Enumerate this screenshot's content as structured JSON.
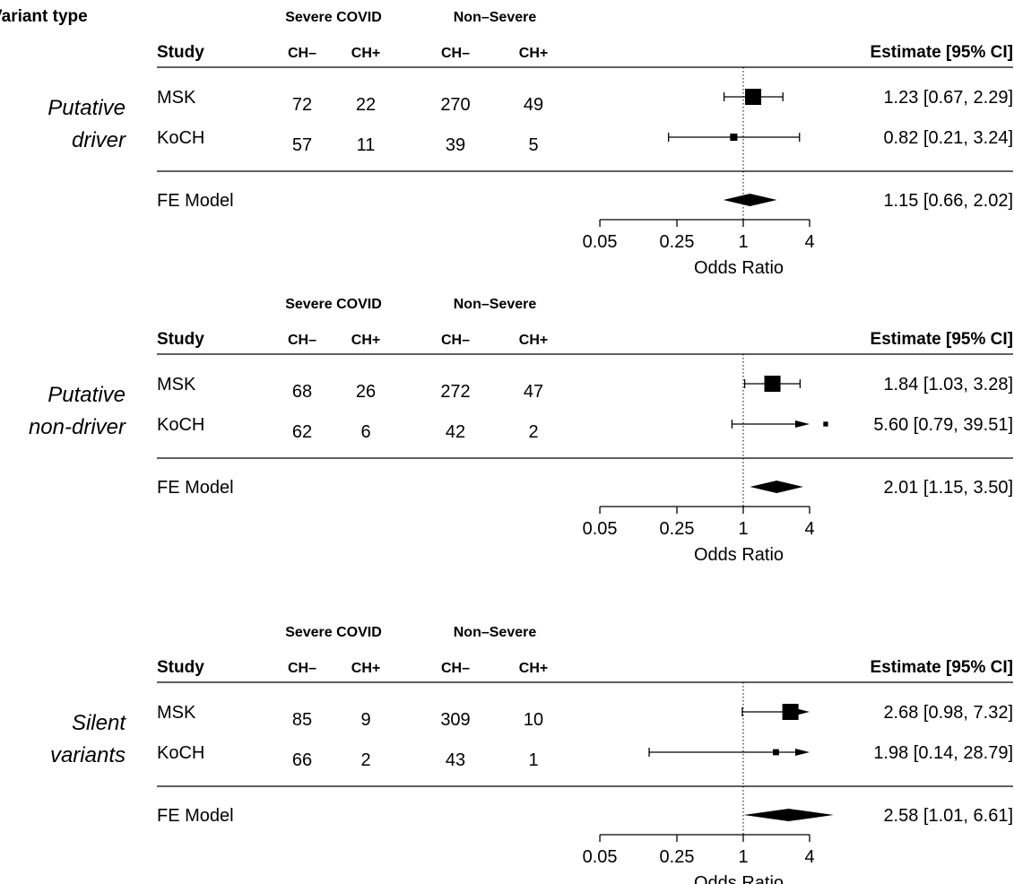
{
  "figure": {
    "title": "Variant type"
  },
  "chart_data": [
    {
      "type": "forest",
      "panel": "Putative driver",
      "group_label_lines": [
        "Putative",
        "driver"
      ],
      "group_headers": [
        "Severe COVID",
        "Non–Severe"
      ],
      "column_headers": {
        "study": "Study",
        "sev_neg": "CH–",
        "sev_pos": "CH+",
        "non_neg": "CH–",
        "non_pos": "CH+",
        "estimate": "Estimate [95% CI]"
      },
      "studies": [
        {
          "name": "MSK",
          "sev_neg": "72",
          "sev_pos": "22",
          "non_neg": "270",
          "non_pos": "49",
          "or": 1.23,
          "lo": 0.67,
          "hi": 2.29,
          "est_text": "1.23 [0.67, 2.29]"
        },
        {
          "name": "KoCH",
          "sev_neg": "57",
          "sev_pos": "11",
          "non_neg": "39",
          "non_pos": "5",
          "or": 0.82,
          "lo": 0.21,
          "hi": 3.24,
          "est_text": "0.82 [0.21, 3.24]"
        }
      ],
      "summary": {
        "name": "FE Model",
        "or": 1.15,
        "lo": 0.66,
        "hi": 2.02,
        "est_text": "1.15 [0.66, 2.02]"
      },
      "x_axis": {
        "label": "Odds Ratio",
        "ticks": [
          0.05,
          0.25,
          1,
          4
        ],
        "tick_labels": [
          "0.05",
          "0.25",
          "1",
          "4"
        ],
        "scale": "log"
      }
    },
    {
      "type": "forest",
      "panel": "Putative non-driver",
      "group_label_lines": [
        "Putative",
        "non-driver"
      ],
      "group_headers": [
        "Severe COVID",
        "Non–Severe"
      ],
      "column_headers": {
        "study": "Study",
        "sev_neg": "CH–",
        "sev_pos": "CH+",
        "non_neg": "CH–",
        "non_pos": "CH+",
        "estimate": "Estimate [95% CI]"
      },
      "studies": [
        {
          "name": "MSK",
          "sev_neg": "68",
          "sev_pos": "26",
          "non_neg": "272",
          "non_pos": "47",
          "or": 1.84,
          "lo": 1.03,
          "hi": 3.28,
          "est_text": "1.84 [1.03,  3.28]"
        },
        {
          "name": "KoCH",
          "sev_neg": "62",
          "sev_pos": "6",
          "non_neg": "42",
          "non_pos": "2",
          "or": 5.6,
          "lo": 0.79,
          "hi": 39.51,
          "est_text": "5.60 [0.79, 39.51]"
        }
      ],
      "summary": {
        "name": "FE Model",
        "or": 2.01,
        "lo": 1.15,
        "hi": 3.5,
        "est_text": "2.01 [1.15,  3.50]"
      },
      "x_axis": {
        "label": "Odds Ratio",
        "ticks": [
          0.05,
          0.25,
          1,
          4
        ],
        "tick_labels": [
          "0.05",
          "0.25",
          "1",
          "4"
        ],
        "scale": "log"
      }
    },
    {
      "type": "forest",
      "panel": "Silent variants",
      "group_label_lines": [
        "Silent",
        "variants"
      ],
      "group_headers": [
        "Severe COVID",
        "Non–Severe"
      ],
      "column_headers": {
        "study": "Study",
        "sev_neg": "CH–",
        "sev_pos": "CH+",
        "non_neg": "CH–",
        "non_pos": "CH+",
        "estimate": "Estimate [95% CI]"
      },
      "studies": [
        {
          "name": "MSK",
          "sev_neg": "85",
          "sev_pos": "9",
          "non_neg": "309",
          "non_pos": "10",
          "or": 2.68,
          "lo": 0.98,
          "hi": 7.32,
          "est_text": "2.68 [0.98,  7.32]"
        },
        {
          "name": "KoCH",
          "sev_neg": "66",
          "sev_pos": "2",
          "non_neg": "43",
          "non_pos": "1",
          "or": 1.98,
          "lo": 0.14,
          "hi": 28.79,
          "est_text": "1.98 [0.14, 28.79]"
        }
      ],
      "summary": {
        "name": "FE Model",
        "or": 2.58,
        "lo": 1.01,
        "hi": 6.61,
        "est_text": "2.58 [1.01,  6.61]"
      },
      "x_axis": {
        "label": "Odds Ratio",
        "ticks": [
          0.05,
          0.25,
          1,
          4
        ],
        "tick_labels": [
          "0.05",
          "0.25",
          "1",
          "4"
        ],
        "scale": "log"
      }
    }
  ]
}
